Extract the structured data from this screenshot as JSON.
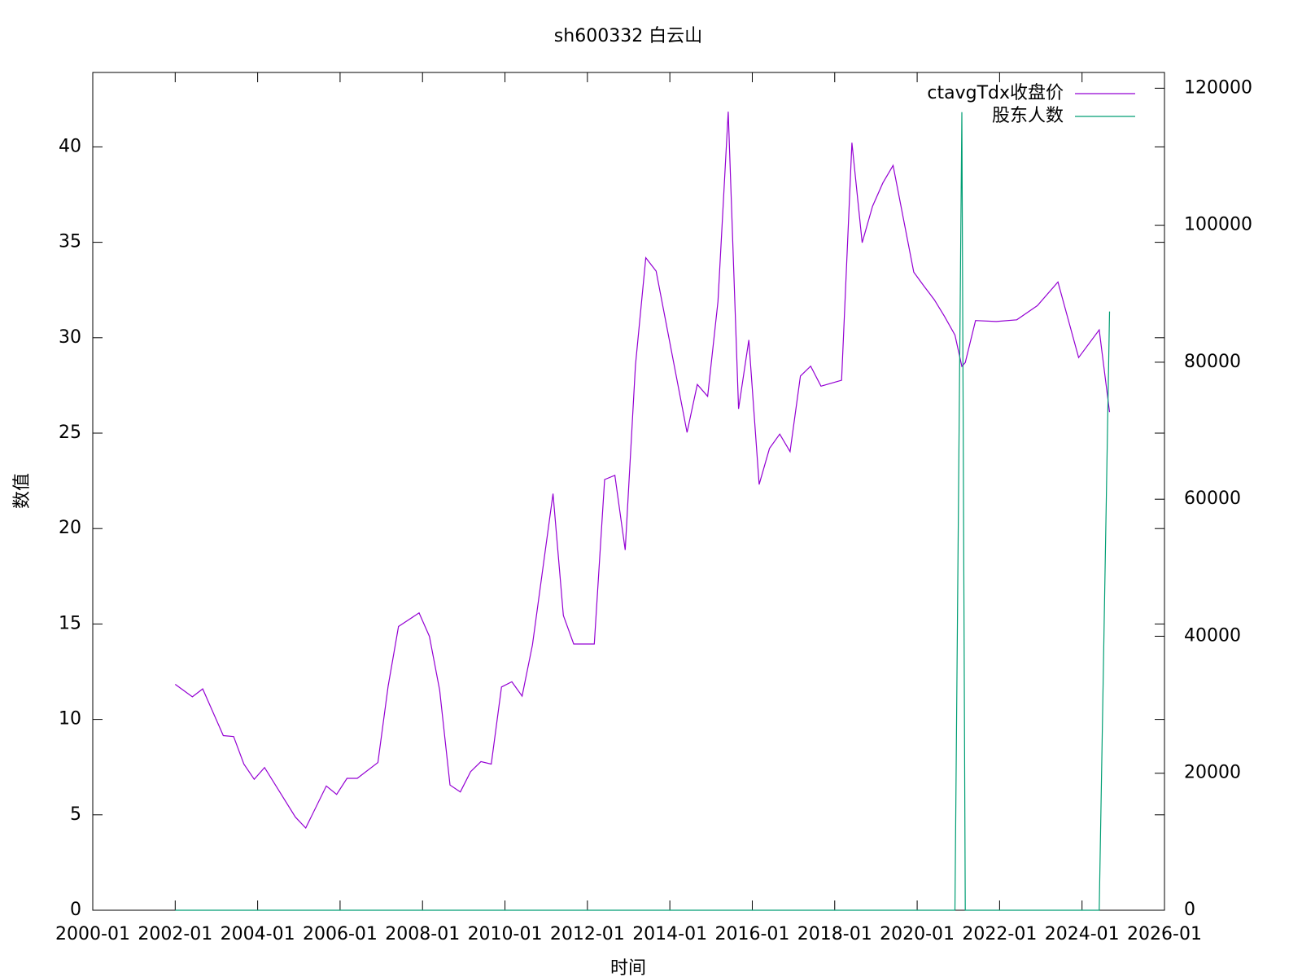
{
  "chart_data": {
    "type": "line",
    "title": "sh600332 白云山",
    "xlabel": "时间",
    "ylabel": "数值",
    "x": [
      "2002-01",
      "2002-06",
      "2002-09",
      "2003-03",
      "2003-06",
      "2003-09",
      "2003-12",
      "2004-03",
      "2004-12",
      "2005-03",
      "2005-09",
      "2005-12",
      "2006-03",
      "2006-06",
      "2006-12",
      "2007-03",
      "2007-06",
      "2007-12",
      "2008-03",
      "2008-06",
      "2008-09",
      "2008-12",
      "2009-03",
      "2009-06",
      "2009-09",
      "2009-12",
      "2010-03",
      "2010-06",
      "2010-09",
      "2011-03",
      "2011-06",
      "2011-09",
      "2012-03",
      "2012-06",
      "2012-09",
      "2012-12",
      "2013-03",
      "2013-06",
      "2013-09",
      "2014-06",
      "2014-09",
      "2014-12",
      "2015-03",
      "2015-06",
      "2015-09",
      "2015-12",
      "2016-03",
      "2016-06",
      "2016-09",
      "2016-12",
      "2017-03",
      "2017-06",
      "2017-09",
      "2018-03",
      "2018-06",
      "2018-09",
      "2018-12",
      "2019-03",
      "2019-06",
      "2019-12",
      "2020-03",
      "2020-06",
      "2020-09",
      "2020-12",
      "2021-02",
      "2021-03",
      "2021-06",
      "2021-12",
      "2022-06",
      "2022-12",
      "2023-06",
      "2023-12",
      "2024-06",
      "2024-09"
    ],
    "series": [
      {
        "name": "ctavgTdx收盘价",
        "color": "#9400d3",
        "values": [
          11.84,
          11.18,
          11.6,
          9.15,
          9.1,
          7.66,
          6.86,
          7.48,
          4.88,
          4.31,
          6.51,
          6.07,
          6.91,
          6.91,
          7.74,
          11.75,
          14.87,
          15.58,
          14.35,
          11.53,
          6.56,
          6.2,
          7.26,
          7.79,
          7.66,
          11.7,
          11.97,
          11.22,
          13.9,
          21.83,
          15.45,
          13.95,
          13.95,
          22.57,
          22.79,
          18.88,
          28.56,
          34.19,
          33.49,
          25.04,
          27.55,
          26.93,
          31.9,
          41.85,
          26.27,
          29.88,
          22.31,
          24.2,
          24.95,
          24.03,
          27.99,
          28.51,
          27.46,
          27.77,
          40.22,
          34.98,
          36.88,
          38.11,
          39.03,
          33.44,
          32.7,
          31.99,
          31.11,
          30.14,
          28.5,
          28.7,
          30.9,
          30.85,
          30.94,
          31.68,
          32.92,
          28.96,
          30.41,
          26.1
        ]
      },
      {
        "name": "股东人数",
        "color": "#009e73",
        "axis": "y2",
        "values": [
          0,
          0,
          0,
          0,
          0,
          0,
          0,
          0,
          0,
          0,
          0,
          0,
          0,
          0,
          0,
          0,
          0,
          0,
          0,
          0,
          0,
          0,
          0,
          0,
          0,
          0,
          0,
          0,
          0,
          0,
          0,
          0,
          0,
          0,
          0,
          0,
          0,
          0,
          0,
          0,
          0,
          0,
          0,
          0,
          0,
          0,
          0,
          0,
          0,
          0,
          0,
          0,
          0,
          0,
          0,
          0,
          0,
          0,
          0,
          0,
          0,
          0,
          0,
          0,
          116500,
          0,
          0,
          0,
          0,
          0,
          0,
          0,
          0,
          87400
        ]
      }
    ],
    "xlim": [
      "2000-01",
      "2026-01"
    ],
    "xticks": [
      "2000-01",
      "2002-01",
      "2004-01",
      "2006-01",
      "2008-01",
      "2010-01",
      "2012-01",
      "2014-01",
      "2016-01",
      "2018-01",
      "2020-01",
      "2022-01",
      "2024-01",
      "2026-01"
    ],
    "ylim": [
      0,
      43.9
    ],
    "yticks": [
      0,
      5,
      10,
      15,
      20,
      25,
      30,
      35,
      40
    ],
    "y2lim": [
      0,
      122300
    ],
    "y2ticks": [
      0,
      20000,
      40000,
      60000,
      80000,
      100000,
      120000
    ],
    "legend": "top right"
  }
}
